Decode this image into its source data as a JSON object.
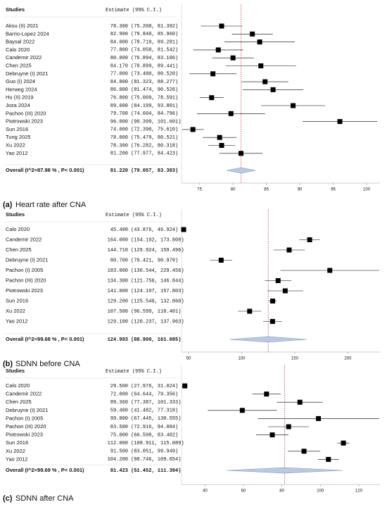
{
  "chart_data": [
    {
      "type": "forest",
      "label": "(a)",
      "title": "Heart rate after CNA",
      "columns": [
        "Studies",
        "Estimate (95% C.I.)"
      ],
      "studies": [
        "Aksu (II) 2021",
        "Barrio-Lopez 2024",
        "Baysal 2022",
        "Calo 2020",
        "Candemir 2022",
        "Chen 2025",
        "Debruyne (I) 2021",
        "Guo (I) 2024",
        "Herweg 2024",
        "Hu (II) 2019",
        "Joza 2024",
        "Pachon (III) 2020",
        "Piotrowski 2023",
        "Sun 2016",
        "Tung 2025",
        "Xu 2022",
        "Yao 2012"
      ],
      "values": [
        78.3,
        82.9,
        84.0,
        77.8,
        80.0,
        84.17,
        77.0,
        84.8,
        86.0,
        76.8,
        89.0,
        79.7,
        96.0,
        74.0,
        78.0,
        78.3,
        81.2
      ],
      "value_labels": [
        "78.300",
        "82.900",
        "84.000",
        "77.800",
        "80.000",
        "84.170",
        "77.000",
        "84.800",
        "86.000",
        "76.800",
        "89.000",
        "79.700",
        "96.000",
        "74.000",
        "78.000",
        "78.300",
        "81.200"
      ],
      "lower": [
        75.208,
        79.84,
        78.719,
        74.058,
        76.894,
        78.899,
        73.48,
        81.323,
        81.474,
        75.009,
        84.199,
        74.604,
        90.399,
        72.39,
        75.479,
        76.282,
        77.977
      ],
      "upper": [
        81.392,
        85.96,
        89.281,
        81.542,
        83.106,
        89.441,
        80.52,
        88.277,
        90.526,
        78.591,
        93.801,
        84.796,
        101.601,
        75.61,
        80.521,
        80.318,
        84.423
      ],
      "interval_labels": [
        "(75.208, 81.392)",
        "(79.840, 85.960)",
        "(78.719, 89.281)",
        "(74.058, 81.542)",
        "(76.894, 83.106)",
        "(78.899, 89.441)",
        "(73.480, 80.520)",
        "(81.323, 88.277)",
        "(81.474, 90.526)",
        "(75.009, 78.591)",
        "(84.199, 93.801)",
        "(74.604, 84.796)",
        "(90.399, 101.601)",
        "(72.390, 75.610)",
        "(75.479, 80.521)",
        "(76.282, 80.318)",
        "(77.977, 84.423)"
      ],
      "overall": {
        "name": "Overall (I^2=87.98 % , P< 0.001)",
        "value": 81.22,
        "value_label": "81.220",
        "lower": 79.057,
        "upper": 83.383,
        "interval_label": "(79.057, 83.383)"
      },
      "xlim": [
        72.3,
        102
      ],
      "xticks": [
        75,
        80,
        85,
        90,
        95,
        100
      ],
      "marker_color": "#000000",
      "summary_color": "#b9c9e2",
      "reference_color": "#d03a2f"
    },
    {
      "type": "forest",
      "label": "(b)",
      "title": "SDNN before CNA",
      "columns": [
        "Studies",
        "Estimate (95% C.I.)"
      ],
      "studies": [
        "Calo 2020",
        "Candemir 2022",
        "Chen 2025",
        "Debruyne (I) 2021",
        "Pachon (I) 2005",
        "Pachon (III) 2020",
        "Piotrowski 2023",
        "Sun 2016",
        "Xu 2022",
        "Yao 2012"
      ],
      "values": [
        45.4,
        164.0,
        144.71,
        80.7,
        183.0,
        134.3,
        141.0,
        129.2,
        107.5,
        129.1
      ],
      "value_labels": [
        "45.400",
        "164.000",
        "144.710",
        "80.700",
        "183.000",
        "134.300",
        "141.000",
        "129.200",
        "107.500",
        "129.100"
      ],
      "lower": [
        43.876,
        154.192,
        129.924,
        70.421,
        136.544,
        121.756,
        124.197,
        125.54,
        96.599,
        120.237
      ],
      "upper": [
        46.924,
        173.808,
        159.496,
        90.979,
        229.456,
        146.844,
        157.803,
        132.86,
        118.401,
        137.963
      ],
      "interval_labels": [
        "(43.876, 46.924)",
        "(154.192, 173.808)",
        "(129.924, 159.496)",
        "(70.421, 90.979)",
        "(136.544, 229.456)",
        "(121.756, 146.844)",
        "(124.197, 157.803)",
        "(125.540, 132.860)",
        "(96.599, 118.401)",
        "(120.237, 137.963)"
      ],
      "overall": {
        "name": "Overall (I^2=99.68 % , P< 0.001)",
        "value": 124.993,
        "value_label": "124.993",
        "lower": 88.9,
        "upper": 161.085,
        "interval_label": "(88.900, 161.085)"
      },
      "xlim": [
        43.4,
        230.2
      ],
      "xticks": [
        50,
        100,
        150,
        200
      ],
      "marker_color": "#000000",
      "summary_color": "#b9c9e2",
      "reference_color": "#d03a2f"
    },
    {
      "type": "forest",
      "label": "(c)",
      "title": "SDNN after CNA",
      "columns": [
        "Studies",
        "Estimate (95% C.I.)"
      ],
      "studies": [
        "Calo 2020",
        "Candemir 2022",
        "Chen 2025",
        "Debruyne (I) 2021",
        "Pachon (I) 2005",
        "Pachon (III) 2020",
        "Piotrowski 2023",
        "Sun 2016",
        "Xu 2022",
        "Yao 2012"
      ],
      "values": [
        29.5,
        72.0,
        89.36,
        59.4,
        99.0,
        83.5,
        75.0,
        112.0,
        91.5,
        104.2
      ],
      "value_labels": [
        "29.500",
        "72.000",
        "89.360",
        "59.400",
        "99.000",
        "83.500",
        "75.000",
        "112.000",
        "91.500",
        "104.200"
      ],
      "lower": [
        27.976,
        64.644,
        77.387,
        41.482,
        67.445,
        72.916,
        66.598,
        108.911,
        83.051,
        98.746
      ],
      "upper": [
        31.024,
        79.356,
        101.333,
        77.318,
        130.555,
        94.084,
        83.402,
        115.089,
        99.949,
        109.654
      ],
      "interval_labels": [
        "(27.976, 31.024)",
        "(64.644, 79.356)",
        "(77.387, 101.333)",
        "(41.482, 77.318)",
        "(67.445, 130.555)",
        "(72.916, 94.084)",
        "(66.598, 83.402)",
        "(108.911, 115.089)",
        "(83.051, 99.949)",
        "(98.746, 109.654)"
      ],
      "overall": {
        "name": "Overall (I^2=99.69 % , P< 0.001)",
        "value": 81.423,
        "value_label": "81.423",
        "lower": 51.452,
        "upper": 111.394,
        "interval_label": "(51.452, 111.394)"
      },
      "xlim": [
        27.8,
        131
      ],
      "xticks": [
        40,
        60,
        80,
        100,
        120
      ],
      "marker_color": "#000000",
      "summary_color": "#b9c9e2",
      "reference_color": "#d03a2f"
    }
  ]
}
